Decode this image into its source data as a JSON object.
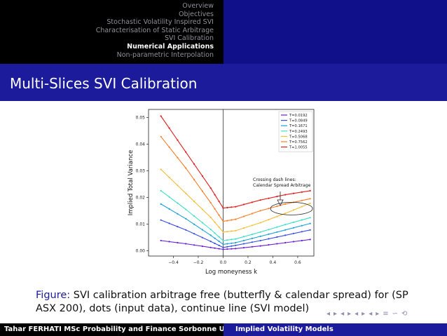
{
  "nav": {
    "items": [
      {
        "label": "Overview",
        "active": false
      },
      {
        "label": "Objectives",
        "active": false
      },
      {
        "label": "Stochastic Volatility Inspired SVI",
        "active": false
      },
      {
        "label": "Characterisation of Static Arbitrage",
        "active": false
      },
      {
        "label": "SVI Calibration",
        "active": false
      },
      {
        "label": "Numerical Applications",
        "active": true
      },
      {
        "label": "Non-parametric Interpolation",
        "active": false
      }
    ]
  },
  "frame": {
    "title": "Multi-Slices SVI Calibration"
  },
  "caption": {
    "label": "Figure:",
    "text": " SVI calibration arbitrage free (butterfly & calendar spread) for (SP ASX 200), dots (input data), continue line (SVI model)"
  },
  "footer": {
    "author": "Tahar FERHATI MSc Probability and Finance  Sorbonne Un",
    "title": "Implied Volatility Models"
  },
  "beamer_nav": {
    "symbols": [
      "◂",
      "▸",
      "◂",
      "▸",
      "◂",
      "▸",
      "◂",
      "▸",
      "≡",
      "∽",
      "⟲"
    ]
  },
  "chart_data": {
    "type": "line",
    "xlabel": "Log moneyness k",
    "ylabel": "Implied Total Variance",
    "xlim": [
      -0.6,
      0.73
    ],
    "ylim": [
      -0.002,
      0.053
    ],
    "xticks": [
      -0.4,
      -0.2,
      0.0,
      0.2,
      0.4,
      0.6
    ],
    "xtick_labels": [
      "−0.4",
      "−0.2",
      "0.0",
      "0.2",
      "0.4",
      "0.6"
    ],
    "yticks": [
      0.0,
      0.01,
      0.02,
      0.03,
      0.04,
      0.05
    ],
    "ytick_labels": [
      "0.00",
      "0.01",
      "0.02",
      "0.03",
      "0.04",
      "0.05"
    ],
    "grid": false,
    "vline_x": 0.0,
    "legend_position": "top-right",
    "annotation": {
      "text_lines": [
        "Crossing dash lines:",
        "Calendar Spread Arbitrage"
      ],
      "ellipse_center": [
        0.55,
        0.0158
      ]
    },
    "series": [
      {
        "name": "T=0.0192",
        "color": "#6a1fd6",
        "x": [
          -0.5,
          -0.3,
          -0.1,
          0.0,
          0.1,
          0.3,
          0.5,
          0.7
        ],
        "y": [
          0.0038,
          0.0026,
          0.0012,
          0.0005,
          0.0008,
          0.0018,
          0.003,
          0.0042
        ]
      },
      {
        "name": "T=0.0849",
        "color": "#3b4fe0",
        "x": [
          -0.5,
          -0.3,
          -0.1,
          0.0,
          0.1,
          0.3,
          0.5,
          0.7
        ],
        "y": [
          0.0115,
          0.0078,
          0.0035,
          0.0012,
          0.002,
          0.0038,
          0.0058,
          0.0078
        ]
      },
      {
        "name": "T=0.1671",
        "color": "#1fa0d8",
        "x": [
          -0.5,
          -0.3,
          -0.1,
          0.0,
          0.1,
          0.3,
          0.5,
          0.7
        ],
        "y": [
          0.0175,
          0.012,
          0.0058,
          0.0024,
          0.003,
          0.0054,
          0.0078,
          0.0102
        ]
      },
      {
        "name": "T=0.2493",
        "color": "#3fe0c8",
        "x": [
          -0.5,
          -0.3,
          -0.1,
          0.0,
          0.1,
          0.3,
          0.5,
          0.7
        ],
        "y": [
          0.0225,
          0.0155,
          0.008,
          0.0038,
          0.0044,
          0.007,
          0.0098,
          0.0124
        ]
      },
      {
        "name": "T=0.5068",
        "color": "#f2bf3a",
        "x": [
          -0.5,
          -0.3,
          -0.1,
          0.0,
          0.1,
          0.3,
          0.5,
          0.7
        ],
        "y": [
          0.0305,
          0.0215,
          0.0125,
          0.007,
          0.0075,
          0.0105,
          0.014,
          0.0178
        ]
      },
      {
        "name": "T=0.7562",
        "color": "#f77f2a",
        "x": [
          -0.5,
          -0.3,
          -0.1,
          0.0,
          0.1,
          0.3,
          0.5,
          0.7
        ],
        "y": [
          0.0428,
          0.031,
          0.018,
          0.011,
          0.0118,
          0.015,
          0.0175,
          0.0195
        ]
      },
      {
        "name": "T=1.0055",
        "color": "#e01e1e",
        "x": [
          -0.5,
          -0.3,
          -0.1,
          0.0,
          0.1,
          0.3,
          0.5,
          0.7
        ],
        "y": [
          0.0505,
          0.037,
          0.0235,
          0.016,
          0.0165,
          0.019,
          0.021,
          0.0225
        ]
      }
    ]
  }
}
